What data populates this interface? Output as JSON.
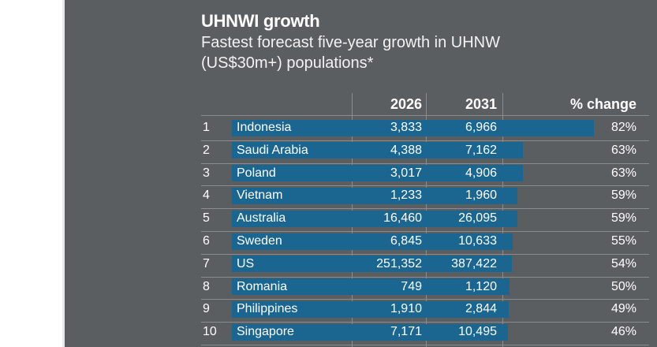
{
  "chart_data": {
    "type": "table",
    "title": "UHNWI growth",
    "subtitle_lines": [
      "Fastest forecast five-year growth in UHNW",
      "(US$30m+) populations*"
    ],
    "columns": [
      "",
      "",
      "2026",
      "2031",
      "% change"
    ],
    "rows": [
      {
        "rank": "1",
        "country": "Indonesia",
        "y2026": "3,833",
        "y2031": "6,966",
        "change": "82%",
        "change_value": 82
      },
      {
        "rank": "2",
        "country": "Saudi Arabia",
        "y2026": "4,388",
        "y2031": "7,162",
        "change": "63%",
        "change_value": 63
      },
      {
        "rank": "3",
        "country": "Poland",
        "y2026": "3,017",
        "y2031": "4,906",
        "change": "63%",
        "change_value": 63
      },
      {
        "rank": "4",
        "country": "Vietnam",
        "y2026": "1,233",
        "y2031": "1,960",
        "change": "59%",
        "change_value": 59
      },
      {
        "rank": "5",
        "country": "Australia",
        "y2026": "16,460",
        "y2031": "26,095",
        "change": "59%",
        "change_value": 59
      },
      {
        "rank": "6",
        "country": "Sweden",
        "y2026": "6,845",
        "y2031": "10,633",
        "change": "55%",
        "change_value": 55
      },
      {
        "rank": "7",
        "country": "US",
        "y2026": "251,352",
        "y2031": "387,422",
        "change": "54%",
        "change_value": 54
      },
      {
        "rank": "8",
        "country": "Romania",
        "y2026": "749",
        "y2031": "1,120",
        "change": "50%",
        "change_value": 50
      },
      {
        "rank": "9",
        "country": "Philippines",
        "y2026": "1,910",
        "y2031": "2,844",
        "change": "49%",
        "change_value": 49
      },
      {
        "rank": "10",
        "country": "Singapore",
        "y2026": "7,171",
        "y2031": "10,495",
        "change": "46%",
        "change_value": 46
      }
    ],
    "bar_color": "#1a6690",
    "background_color": "#5b5e61",
    "text_color": "#ffffff"
  }
}
